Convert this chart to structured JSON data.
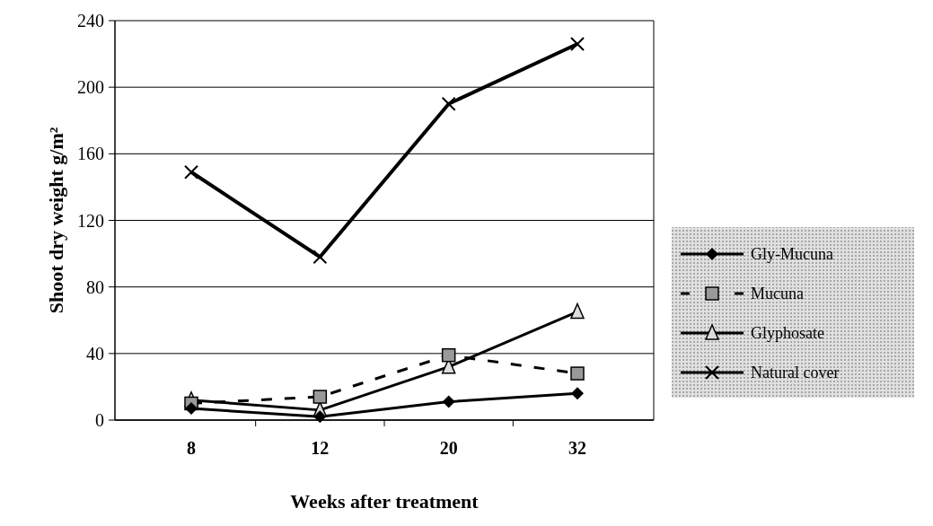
{
  "chart_data": {
    "type": "line",
    "xlabel": "Weeks after treatment",
    "ylabel": "Shoot dry weight g/m²",
    "categories": [
      "8",
      "12",
      "20",
      "32"
    ],
    "ylim": [
      0,
      240
    ],
    "yticks": [
      0,
      40,
      80,
      120,
      160,
      200,
      240
    ],
    "grid": "y",
    "legend": "right",
    "series": [
      {
        "name": "Gly-Mucuna",
        "color": "#000000",
        "marker": "diamond",
        "line_style": "solid",
        "values": [
          7,
          2,
          11,
          16
        ]
      },
      {
        "name": "Mucuna",
        "color": "#000000",
        "marker": "square",
        "line_style": "dashed",
        "values": [
          10,
          14,
          39,
          28
        ]
      },
      {
        "name": "Glyphosate",
        "color": "#000000",
        "marker": "triangle",
        "line_style": "solid",
        "values": [
          12,
          6,
          32,
          65
        ]
      },
      {
        "name": "Natural cover",
        "color": "#000000",
        "marker": "cross",
        "line_style": "solid",
        "values": [
          149,
          98,
          190,
          226
        ]
      }
    ]
  }
}
